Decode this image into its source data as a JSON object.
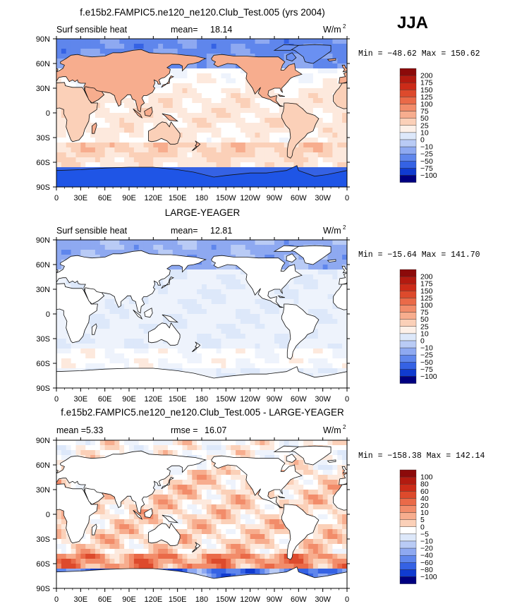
{
  "season": "JJA",
  "colors": {
    "land_fill": "#ffffff",
    "coast": "#111111",
    "grid_neg": [
      "#000080",
      "#0a2ecc",
      "#1f55e6",
      "#3f72ee",
      "#6a90f2",
      "#94aef4",
      "#bccbf6",
      "#dde8fa"
    ],
    "grid_pos": [
      "#ffffff",
      "#fde2d2",
      "#fbc5a7",
      "#f8a682",
      "#f4855f",
      "#ee6140",
      "#dd3d22",
      "#c41e0f",
      "#8c0a0a"
    ]
  },
  "chart_data": [
    {
      "type": "heatmap",
      "title": "f.e15b2.FAMPIC5.ne120_ne120.Club_Test.005 (yrs 2004)",
      "left_label": "Surf sensible heat",
      "mean_label": "mean=",
      "mean_value": "18.14",
      "units_base": "W/m",
      "units_exp": "2",
      "minmax_text": "Min = −48.62 Max = 150.62",
      "xticks": [
        "0",
        "30E",
        "60E",
        "90E",
        "120E",
        "150E",
        "180",
        "150W",
        "120W",
        "90W",
        "60W",
        "30W",
        "0"
      ],
      "yticks": [
        "90N",
        "60N",
        "30N",
        "0",
        "30S",
        "60S",
        "90S"
      ],
      "colorbar_labels": [
        "200",
        "175",
        "150",
        "125",
        "100",
        "75",
        "50",
        "25",
        "10",
        "0",
        "−10",
        "−25",
        "−50",
        "−75",
        "−100"
      ],
      "colorbar_colors": [
        "#8c0a0a",
        "#b31a10",
        "#cc2b18",
        "#dd4a2c",
        "#ea6a48",
        "#f28c6a",
        "#f7ad8e",
        "#fbd0b8",
        "#fdf0e8",
        "#dde8fa",
        "#b9cbf5",
        "#8ea9f1",
        "#5f86ec",
        "#3562e4",
        "#103bd0",
        "#000080"
      ],
      "mean": 18.14,
      "min": -48.62,
      "max": 150.62,
      "field": "control"
    },
    {
      "type": "heatmap",
      "title": "LARGE-YEAGER",
      "left_label": "Surf sensible heat",
      "mean_label": "mean=",
      "mean_value": "12.81",
      "units_base": "W/m",
      "units_exp": "2",
      "minmax_text": "Min = −15.64 Max = 141.70",
      "xticks": [
        "0",
        "30E",
        "60E",
        "90E",
        "120E",
        "150E",
        "180",
        "150W",
        "120W",
        "90W",
        "60W",
        "30W",
        "0"
      ],
      "yticks": [
        "90N",
        "60N",
        "30N",
        "0",
        "30S",
        "60S",
        "90S"
      ],
      "colorbar_labels": [
        "200",
        "175",
        "150",
        "125",
        "100",
        "75",
        "50",
        "25",
        "10",
        "0",
        "−10",
        "−25",
        "−50",
        "−75",
        "−100"
      ],
      "colorbar_colors": [
        "#8c0a0a",
        "#b31a10",
        "#cc2b18",
        "#dd4a2c",
        "#ea6a48",
        "#f28c6a",
        "#f7ad8e",
        "#fbd0b8",
        "#fdf0e8",
        "#dde8fa",
        "#b9cbf5",
        "#8ea9f1",
        "#5f86ec",
        "#3562e4",
        "#103bd0",
        "#000080"
      ],
      "mean": 12.81,
      "min": -15.64,
      "max": 141.7,
      "field": "obs"
    },
    {
      "type": "heatmap",
      "title": "f.e15b2.FAMPIC5.ne120_ne120.Club_Test.005 - LARGE-YEAGER",
      "left_label": "mean =",
      "left_value": "5.33",
      "mean_label": "rmse =",
      "mean_value": "16.07",
      "units_base": "W/m",
      "units_exp": "2",
      "minmax_text": "Min = −158.38 Max = 142.14",
      "xticks": [
        "0",
        "30E",
        "60E",
        "90E",
        "120E",
        "150E",
        "180",
        "150W",
        "120W",
        "90W",
        "60W",
        "30W",
        "0"
      ],
      "yticks": [
        "90N",
        "60N",
        "30N",
        "0",
        "30S",
        "60S",
        "90S"
      ],
      "colorbar_labels": [
        "100",
        "80",
        "60",
        "40",
        "20",
        "10",
        "5",
        "0",
        "−5",
        "−10",
        "−20",
        "−40",
        "−60",
        "−80",
        "−100"
      ],
      "colorbar_colors": [
        "#8c0a0a",
        "#b31a10",
        "#cc2b18",
        "#dd4a2c",
        "#ea6a48",
        "#f28c6a",
        "#f7ad8e",
        "#fbd0b8",
        "#ffffff",
        "#dde8fa",
        "#b9cbf5",
        "#8ea9f1",
        "#5f86ec",
        "#3562e4",
        "#103bd0",
        "#000080"
      ],
      "mean": 5.33,
      "rmse": 16.07,
      "min": -158.38,
      "max": 142.14,
      "field": "diff"
    }
  ]
}
